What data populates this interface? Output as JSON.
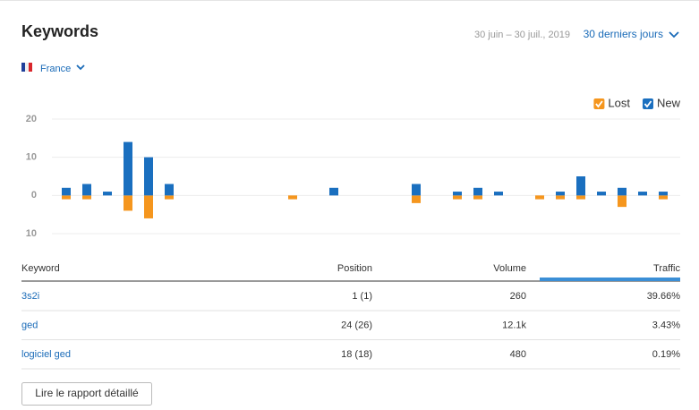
{
  "header": {
    "title": "Keywords",
    "date_range": "30 juin – 30 juil., 2019",
    "period": "30 derniers jours",
    "country": "France"
  },
  "chart_data": {
    "type": "bar",
    "stacked": true,
    "categories": [
      null,
      null,
      null,
      null,
      null,
      null,
      null,
      null,
      null,
      null,
      null,
      null,
      null,
      null,
      null,
      null,
      null,
      null,
      null,
      null,
      null,
      null,
      null,
      null,
      null,
      null,
      null,
      null,
      null,
      null
    ],
    "series": [
      {
        "name": "Lost",
        "color": "#f5961e",
        "values": [
          -1,
          -1,
          0,
          -4,
          -6,
          -1,
          0,
          0,
          0,
          0,
          0,
          -1,
          0,
          0,
          0,
          0,
          0,
          -2,
          0,
          -1,
          -1,
          0,
          0,
          -1,
          -1,
          -1,
          0,
          -3,
          0,
          -1
        ]
      },
      {
        "name": "New",
        "color": "#1a6fbf",
        "values": [
          2,
          3,
          1,
          14,
          10,
          3,
          0,
          0,
          0,
          0,
          0,
          0,
          0,
          2,
          0,
          0,
          0,
          3,
          0,
          1,
          2,
          1,
          0,
          0,
          1,
          5,
          1,
          2,
          1,
          1
        ]
      }
    ],
    "ylim": [
      -10,
      20
    ],
    "yticks": [
      {
        "value": -10,
        "label": "10"
      },
      0,
      10,
      20
    ],
    "grid": true,
    "legend": "top-right"
  },
  "table": {
    "columns": [
      "Keyword",
      "Position",
      "Volume",
      "Traffic"
    ],
    "rows": [
      [
        "3s2i",
        "1 (1)",
        "260",
        "39.66%"
      ],
      [
        "ged",
        "24 (26)",
        "12.1k",
        "3.43%"
      ],
      [
        "logiciel ged",
        "18 (18)",
        "480",
        "0.19%"
      ]
    ]
  },
  "button": "Lire le rapport détaillé"
}
